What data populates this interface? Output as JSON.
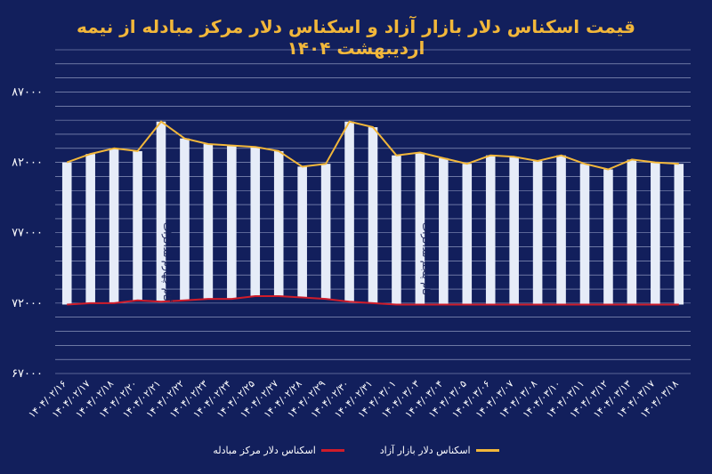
{
  "chart_data": {
    "type": "bar",
    "title": "قیمت اسکناس دلار بازار آزاد و اسکناس دلار مرکز مبادله از نیمه اردیبهشت ۱۴۰۴",
    "ylim": [
      67000,
      90000
    ],
    "yticks": [
      67000,
      72000,
      77000,
      82000,
      87000
    ],
    "ytick_labels": [
      "۶۷۰۰۰",
      "۷۲۰۰۰",
      "۷۷۰۰۰",
      "۸۲۰۰۰",
      "۸۷۰۰۰"
    ],
    "grid": true,
    "categories": [
      "۱۴۰۴/۰۲/۱۶",
      "۱۴۰۴/۰۲/۱۷",
      "۱۴۰۴/۰۲/۱۸",
      "۱۴۰۴/۰۲/۲۰",
      "۱۴۰۴/۰۲/۲۱",
      "۱۴۰۴/۰۲/۲۲",
      "۱۴۰۴/۰۲/۲۳",
      "۱۴۰۴/۰۲/۲۴",
      "۱۴۰۴/۰۲/۲۵",
      "۱۴۰۴/۰۲/۲۷",
      "۱۴۰۴/۰۲/۲۸",
      "۱۴۰۴/۰۲/۲۹",
      "۱۴۰۴/۰۲/۳۰",
      "۱۴۰۴/۰۲/۳۱",
      "۱۴۰۴/۰۳/۰۱",
      "۱۴۰۴/۰۳/۰۳",
      "۱۴۰۴/۰۳/۰۴",
      "۱۴۰۴/۰۳/۰۵",
      "۱۴۰۴/۰۳/۰۶",
      "۱۴۰۴/۰۳/۰۷",
      "۱۴۰۴/۰۳/۰۸",
      "۱۴۰۴/۰۳/۱۰",
      "۱۴۰۴/۰۳/۱۱",
      "۱۴۰۴/۰۳/۱۲",
      "۱۴۰۴/۰۳/۱۳",
      "۱۴۰۴/۰۳/۱۷",
      "۱۴۰۴/۰۳/۱۸"
    ],
    "series": [
      {
        "name": "اسکناس دلار بازار آزاد",
        "color": "#f2b73a",
        "values": [
          82000,
          82600,
          83000,
          82800,
          84900,
          83700,
          83300,
          83200,
          83100,
          82800,
          81700,
          81900,
          84900,
          84500,
          82500,
          82700,
          82300,
          81900,
          82500,
          82400,
          82100,
          82500,
          81900,
          81500,
          82200,
          82000,
          81900
        ]
      },
      {
        "name": "اسکناس دلار مرکز مبادله",
        "color": "#d01c2a",
        "values": [
          71900,
          72000,
          72000,
          72200,
          72100,
          72200,
          72300,
          72300,
          72500,
          72500,
          72400,
          72300,
          72100,
          72000,
          71900,
          71900,
          71900,
          71900,
          71900,
          71900,
          71900,
          71900,
          71900,
          71900,
          71900,
          71900,
          71900
        ]
      }
    ],
    "bar_color": "#e6ecf8",
    "annotations": [
      "گام چهارم مذاکرات",
      "گام پنجم مذاکرات"
    ]
  }
}
